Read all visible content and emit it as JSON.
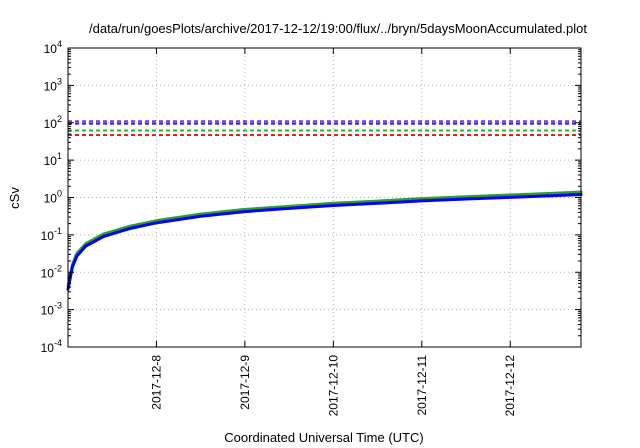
{
  "chart_data": {
    "type": "line",
    "title": "/data/run/goesPlots/archive/2017-12-12/19:00/flux/../bryn/5daysMoonAccumulated.plot",
    "xlabel": "Coordinated Universal Time (UTC)",
    "ylabel": "cSv",
    "yscale": "log",
    "ylim": [
      0.0001,
      10000
    ],
    "xlim": [
      0,
      5.8
    ],
    "grid": true,
    "x_ticks": [
      {
        "x": 1,
        "label": "2017-12-8"
      },
      {
        "x": 2,
        "label": "2017-12-9"
      },
      {
        "x": 3,
        "label": "2017-12-10"
      },
      {
        "x": 4,
        "label": "2017-12-11"
      },
      {
        "x": 5,
        "label": "2017-12-12"
      }
    ],
    "y_ticks": [
      {
        "value": 0.0001,
        "base": "10",
        "exp": "-4"
      },
      {
        "value": 0.001,
        "base": "10",
        "exp": "-3"
      },
      {
        "value": 0.01,
        "base": "10",
        "exp": "-2"
      },
      {
        "value": 0.1,
        "base": "10",
        "exp": "-1"
      },
      {
        "value": 1,
        "base": "10",
        "exp": "0"
      },
      {
        "value": 10,
        "base": "10",
        "exp": "1"
      },
      {
        "value": 100,
        "base": "10",
        "exp": "2"
      },
      {
        "value": 1000,
        "base": "10",
        "exp": "3"
      },
      {
        "value": 10000,
        "base": "10",
        "exp": "4"
      }
    ],
    "thresholds": [
      {
        "value": 110,
        "color": "#8a2be2"
      },
      {
        "value": 95,
        "color": "#1a1aff"
      },
      {
        "value": 62,
        "color": "#22bb22"
      },
      {
        "value": 47,
        "color": "#dd2222"
      }
    ],
    "series": [
      {
        "color": "#2ca02c",
        "x": [
          0,
          0.05,
          0.1,
          0.2,
          0.4,
          0.7,
          1.0,
          1.5,
          2.0,
          2.5,
          3.0,
          3.5,
          4.0,
          4.5,
          5.0,
          5.5,
          5.8
        ],
        "values": [
          0.0042,
          0.016,
          0.032,
          0.058,
          0.105,
          0.17,
          0.24,
          0.36,
          0.48,
          0.58,
          0.7,
          0.8,
          0.93,
          1.05,
          1.17,
          1.3,
          1.4
        ]
      },
      {
        "color": "#0000ff",
        "x": [
          0,
          0.05,
          0.1,
          0.2,
          0.4,
          0.7,
          1.0,
          1.5,
          2.0,
          2.5,
          3.0,
          3.5,
          4.0,
          4.5,
          5.0,
          5.5,
          5.8
        ],
        "values": [
          0.0035,
          0.014,
          0.027,
          0.05,
          0.09,
          0.148,
          0.21,
          0.315,
          0.42,
          0.51,
          0.61,
          0.7,
          0.81,
          0.91,
          1.01,
          1.12,
          1.2
        ]
      }
    ]
  }
}
